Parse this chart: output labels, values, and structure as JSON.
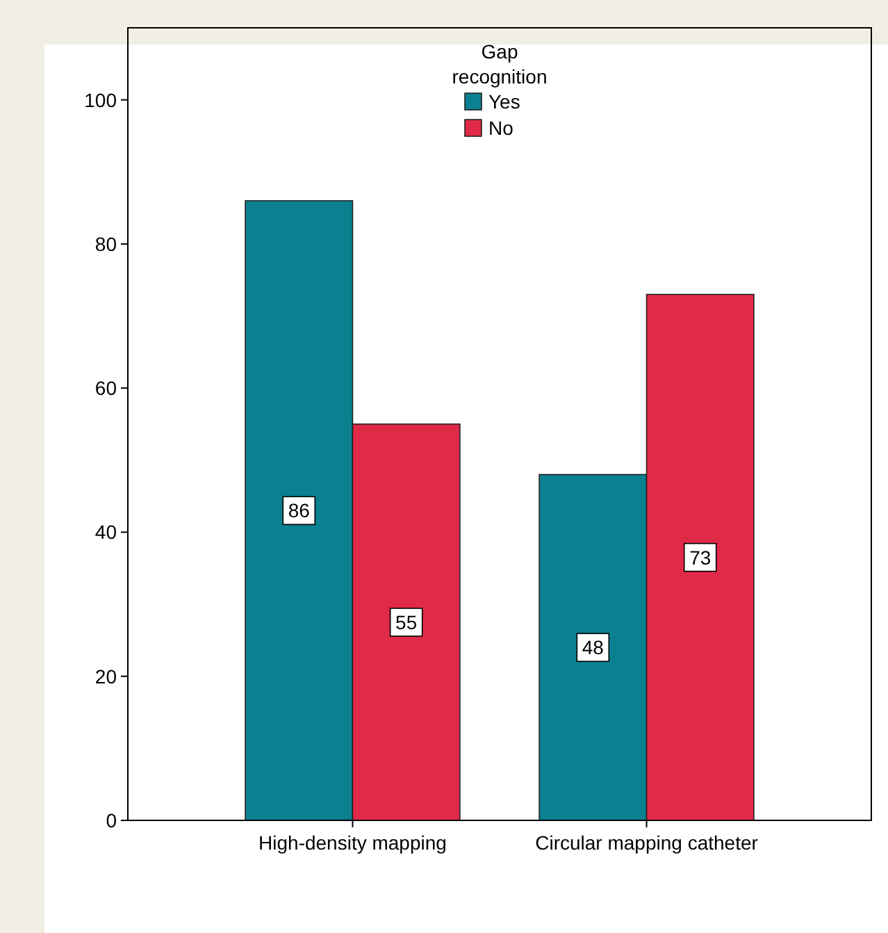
{
  "chart_data": {
    "type": "bar",
    "categories": [
      "High-density mapping",
      "Circular mapping catheter"
    ],
    "series": [
      {
        "name": "Yes",
        "color": "#0b8090",
        "values": [
          86,
          48
        ]
      },
      {
        "name": "No",
        "color": "#e02a48",
        "values": [
          55,
          73
        ]
      }
    ],
    "ylim": [
      0,
      110
    ],
    "yticks": [
      0,
      20,
      40,
      60,
      80,
      100
    ],
    "legend_title": "Gap recognition",
    "legend": "top",
    "data_labels": true,
    "grid": false
  }
}
